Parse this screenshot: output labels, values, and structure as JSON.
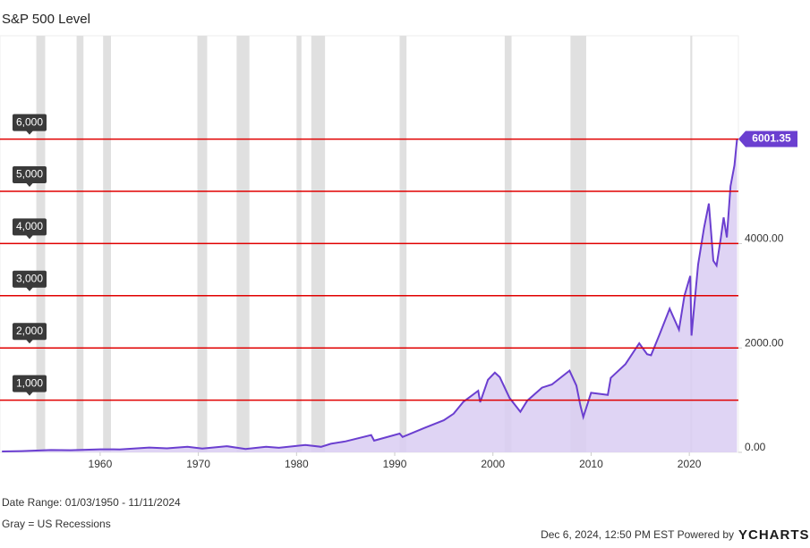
{
  "chart_data": {
    "type": "area",
    "title": "S&P 500 Level",
    "color": "#6b3fd0",
    "fill": "#d9ccf2",
    "x": [
      1950,
      1952,
      1955,
      1957,
      1960,
      1962,
      1965,
      1966.8,
      1968.9,
      1970.4,
      1972.9,
      1974.8,
      1976.9,
      1978.2,
      1980.9,
      1982.5,
      1983.5,
      1985,
      1987.6,
      1987.9,
      1990.5,
      1990.8,
      1993,
      1995,
      1996,
      1997,
      1998.5,
      1998.7,
      1999.5,
      2000.2,
      2000.7,
      2001.7,
      2002.8,
      2003.5,
      2005,
      2006,
      2007.8,
      2008.5,
      2008.9,
      2009.2,
      2010,
      2011.7,
      2012,
      2013.5,
      2014.9,
      2015.7,
      2016.1,
      2017,
      2018,
      2018.95,
      2019.5,
      2020.1,
      2020.22,
      2020.9,
      2021.5,
      2021.99,
      2022.45,
      2022.78,
      2023.2,
      2023.5,
      2023.82,
      2024.2,
      2024.6,
      2024.86
    ],
    "values": [
      17,
      24,
      45,
      41,
      58,
      57,
      92,
      77,
      106,
      72,
      118,
      63,
      107,
      87,
      140,
      107,
      165,
      211,
      330,
      225,
      360,
      295,
      466,
      615,
      740,
      970,
      1180,
      960,
      1390,
      1527,
      1440,
      1040,
      777,
      990,
      1240,
      1300,
      1565,
      1280,
      900,
      677,
      1140,
      1100,
      1426,
      1690,
      2090,
      1880,
      1860,
      2270,
      2750,
      2350,
      3000,
      3380,
      2237,
      3600,
      4300,
      4766,
      3670,
      3577,
      4100,
      4500,
      4117,
      5100,
      5500,
      6001.35
    ],
    "last_value_label": "6001.35",
    "xlim": [
      1949.8,
      2025.0
    ],
    "ylim": [
      0,
      7980
    ],
    "xticks": [
      1960,
      1970,
      1980,
      1990,
      2000,
      2010,
      2020
    ],
    "yticks": [
      {
        "value": 0,
        "label": "0.00"
      },
      {
        "value": 2000,
        "label": "2000.00"
      },
      {
        "value": 4000,
        "label": "4000.00"
      }
    ],
    "recessions": [
      [
        1953.5,
        1954.4
      ],
      [
        1957.6,
        1958.3
      ],
      [
        1960.3,
        1961.1
      ],
      [
        1969.9,
        1970.9
      ],
      [
        1973.9,
        1975.2
      ],
      [
        1980.0,
        1980.5
      ],
      [
        1981.5,
        1982.9
      ],
      [
        1990.5,
        1991.2
      ],
      [
        2001.2,
        2001.9
      ],
      [
        2007.9,
        2009.5
      ],
      [
        2020.1,
        2020.3
      ]
    ],
    "reference_lines": [
      {
        "value": 1000,
        "label": "1,000"
      },
      {
        "value": 2000,
        "label": "2,000"
      },
      {
        "value": 3000,
        "label": "3,000"
      },
      {
        "value": 4000,
        "label": "4,000"
      },
      {
        "value": 5000,
        "label": "5,000"
      },
      {
        "value": 6000,
        "label": "6,000"
      }
    ]
  },
  "footer": {
    "date_range": "Date Range: 01/03/1950 - 11/11/2024",
    "note": "Gray = US Recessions",
    "timestamp": "Dec 6, 2024, 12:50 PM EST Powered by",
    "brand": "YCHARTS"
  }
}
